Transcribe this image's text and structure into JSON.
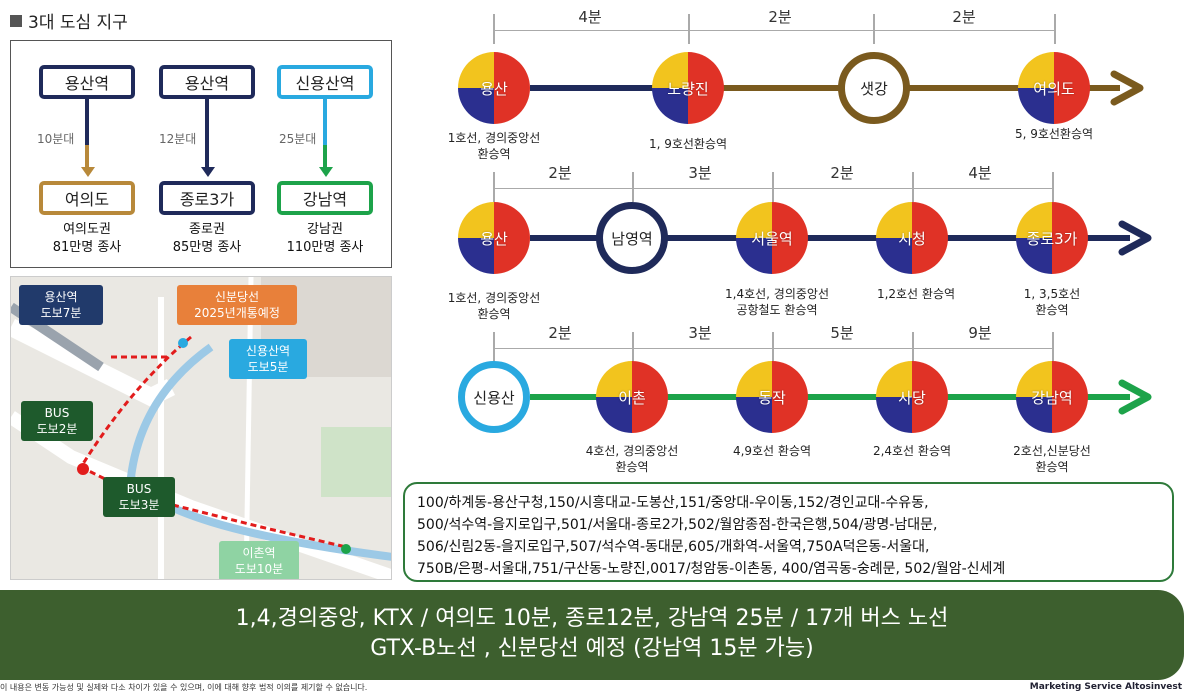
{
  "section_title": "3대 도심 지구",
  "cbd": [
    {
      "from": "용산역",
      "time": "10분대",
      "to": "여의도",
      "caption1": "여의도권",
      "caption2": "81만명 종사",
      "color": "#b8893a"
    },
    {
      "from": "용산역",
      "time": "12분대",
      "to": "종로3가",
      "caption1": "종로권",
      "caption2": "85만명 종사",
      "color": "#1f2a5a"
    },
    {
      "from": "신용산역",
      "time": "25분대",
      "to": "강남역",
      "caption1": "강남권",
      "caption2": "110만명 종사",
      "color": "#1da34a"
    }
  ],
  "map": {
    "callout_yongsan": "용산역\n도보7분",
    "callout_sinbundang": "신분당선\n2025년개통예정",
    "callout_sinyongsan": "신용산역\n도보5분",
    "callout_bus2": "BUS\n도보2분",
    "callout_bus3": "BUS\n도보3분",
    "callout_ichon": "이촌역\n도보10분"
  },
  "routes": [
    {
      "color": "#7a5a1e",
      "stations": [
        {
          "name": "용산",
          "sub": "1호선, 경의중앙선\n환승역"
        },
        {
          "name": "노량진",
          "sub": "1, 9호선환승역"
        },
        {
          "name": "샛강",
          "sub": ""
        },
        {
          "name": "여의도",
          "sub": "5, 9호선환승역"
        }
      ],
      "times": [
        "4분",
        "2분",
        "2분"
      ]
    },
    {
      "color": "#1f2a5a",
      "stations": [
        {
          "name": "용산",
          "sub": "1호선, 경의중앙선\n환승역"
        },
        {
          "name": "남영역",
          "sub": ""
        },
        {
          "name": "서울역",
          "sub": "1,4호선, 경의중앙선\n공항철도 환승역"
        },
        {
          "name": "시청",
          "sub": "1,2호선 환승역"
        },
        {
          "name": "종로3가",
          "sub": "1, 3,5호선\n환승역"
        }
      ],
      "times": [
        "2분",
        "3분",
        "2분",
        "4분"
      ]
    },
    {
      "color": "#1da34a",
      "stations": [
        {
          "name": "신용산",
          "sub": ""
        },
        {
          "name": "이촌",
          "sub": "4호선, 경의중앙선\n환승역"
        },
        {
          "name": "동작",
          "sub": "4,9호선 환승역"
        },
        {
          "name": "사당",
          "sub": "2,4호선 환승역"
        },
        {
          "name": "강남역",
          "sub": "2호선,신분당선\n환승역"
        }
      ],
      "times": [
        "2분",
        "3분",
        "5분",
        "9분"
      ]
    }
  ],
  "bus_routes": "100/하계동-용산구청,150/시흥대교-도봉산,151/중앙대-우이동,152/경인교대-수유동,\n500/석수역-을지로입구,501/서울대-종로2가,502/월암종점-한국은행,504/광명-남대문,\n506/신림2동-을지로입구,507/석수역-동대문,605/개화역-서울역,750A덕은동-서울대,\n750B/은평-서울대,751/구산동-노량진,0017/청암동-이촌동, 400/염곡동-숭례문, 502/월암-신세계",
  "banner_line1": "1,4,경의중앙, KTX / 여의도 10분, 종로12분, 강남역 25분 / 17개 버스 노선",
  "banner_line2": "GTX-B노선 , 신분당선 예정 (강남역 15분 가능)",
  "footer_note": "이 내용은 변동 가능성 및 실제와 다소 차이가 있을 수 있으며, 이에 대해 향후 법적 이의를 제기할 수 없습니다.",
  "footer_brand": "Marketing Service  Altosinvest"
}
